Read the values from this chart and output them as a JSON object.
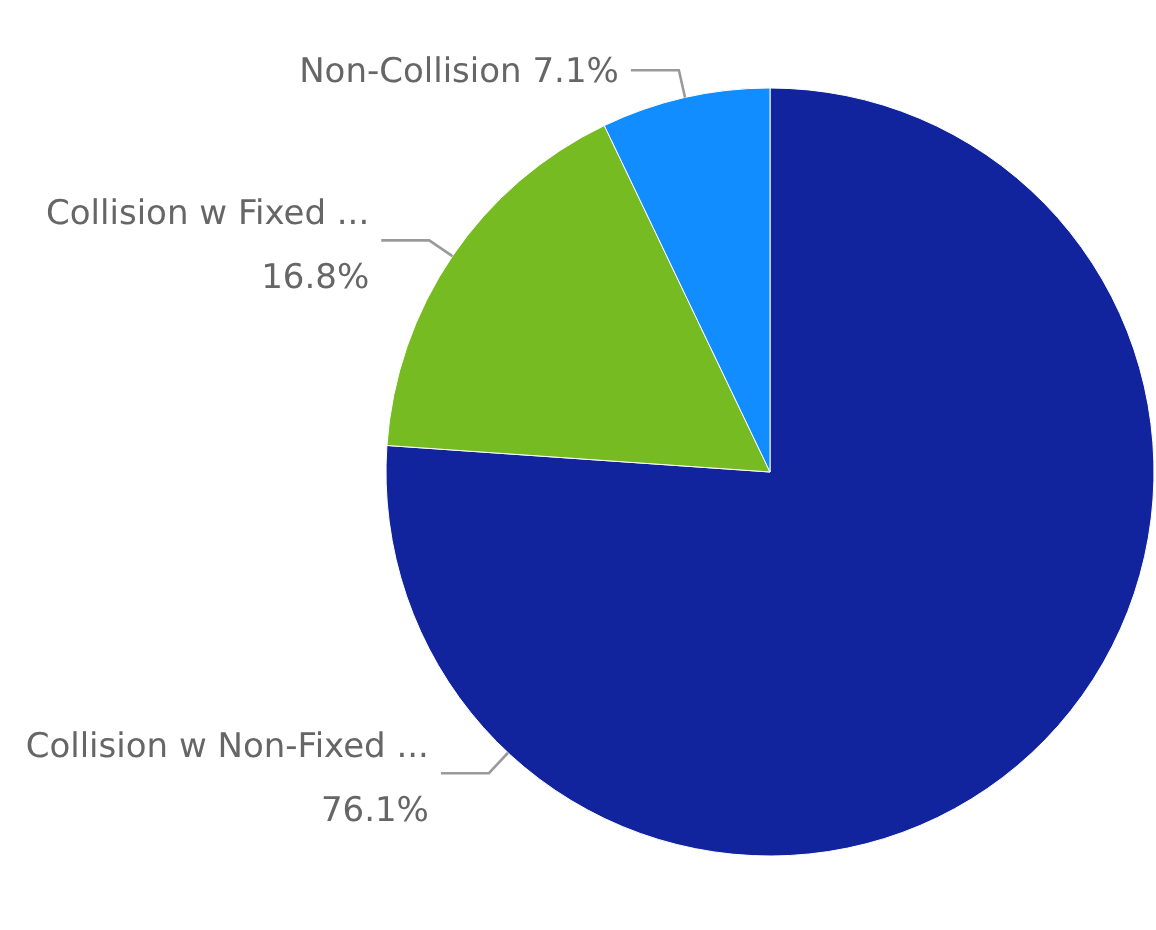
{
  "chart_data": {
    "type": "pie",
    "categories": [
      "Collision w Non-Fixed ...",
      "Collision w Fixed ...",
      "Non-Collision"
    ],
    "values": [
      76.1,
      16.8,
      7.1
    ],
    "colors": [
      "#12239e",
      "#77bb22",
      "#118dff"
    ],
    "value_labels": [
      "76.1%",
      "16.8%",
      "7.1%"
    ]
  }
}
